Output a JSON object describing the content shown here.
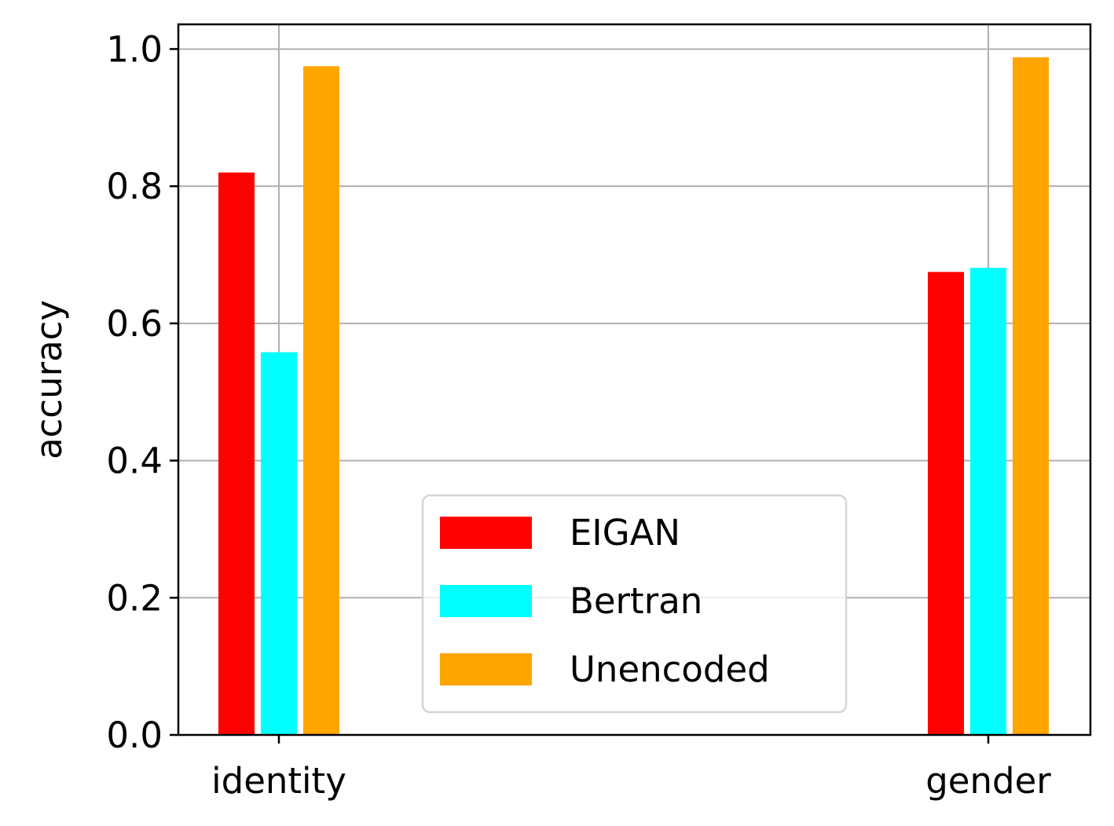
{
  "chart_data": {
    "type": "bar",
    "categories": [
      "identity",
      "gender"
    ],
    "series": [
      {
        "name": "EIGAN",
        "color": "#ff0000",
        "values": [
          0.82,
          0.675
        ]
      },
      {
        "name": "Bertran",
        "color": "#00ffff",
        "values": [
          0.558,
          0.681
        ]
      },
      {
        "name": "Unencoded",
        "color": "#ffa500",
        "values": [
          0.975,
          0.988
        ]
      }
    ],
    "ylabel": "accuracy",
    "xlabel": "",
    "ylim": [
      0,
      1.036
    ],
    "yticks": [
      "0.0",
      "0.2",
      "0.4",
      "0.6",
      "0.8",
      "1.0"
    ],
    "grid": true,
    "legend_position": "lower center"
  }
}
